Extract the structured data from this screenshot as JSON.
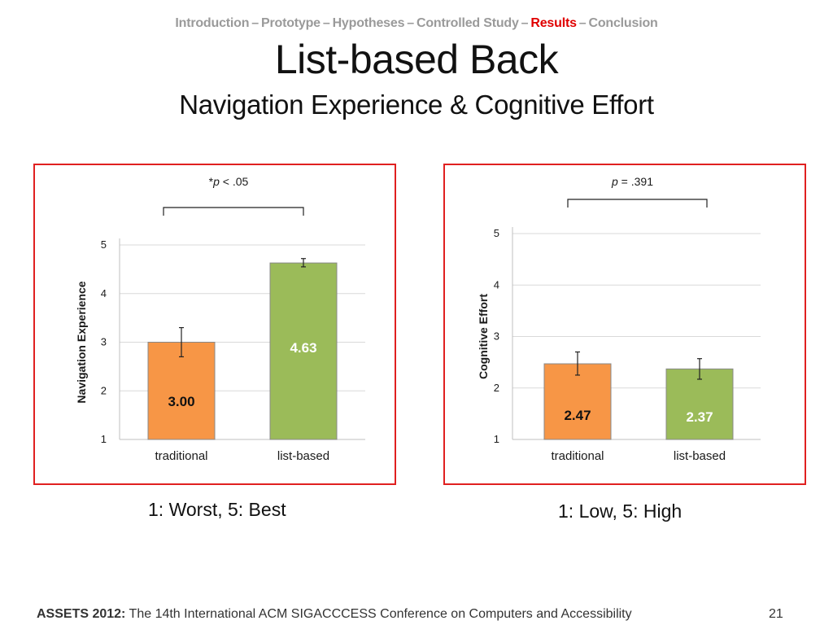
{
  "breadcrumb": {
    "items": [
      "Introduction",
      "Prototype",
      "Hypotheses",
      "Controlled Study",
      "Results",
      "Conclusion"
    ],
    "active_index": 4,
    "separator": "–",
    "active_color": "#e00000"
  },
  "title": "List-based Back",
  "subtitle": "Navigation Experience & Cognitive Effort",
  "colors": {
    "panel_border": "#e02020",
    "traditional_bar": "#f79646",
    "list_based_bar": "#9bbb59"
  },
  "chart_data": [
    {
      "type": "bar",
      "significance_label_prefix": "*",
      "significance_label_italic": "p",
      "significance_label_rest": " < .05",
      "ylabel": "Navigation Experience",
      "ylim": [
        1,
        5
      ],
      "yticks": [
        "1",
        "2",
        "3",
        "4",
        "5"
      ],
      "categories": [
        "traditional",
        "list-based"
      ],
      "values": [
        3.0,
        4.63
      ],
      "data_labels": [
        "3.00",
        "4.63"
      ],
      "error_low": [
        2.7,
        4.55
      ],
      "error_high": [
        3.3,
        4.72
      ],
      "grid": true
    },
    {
      "type": "bar",
      "significance_label_prefix": "",
      "significance_label_italic": "p",
      "significance_label_rest": " = .391",
      "ylabel": "Cognitive Effort",
      "ylim": [
        1,
        5
      ],
      "yticks": [
        "1",
        "2",
        "3",
        "4",
        "5"
      ],
      "categories": [
        "traditional",
        "list-based"
      ],
      "values": [
        2.47,
        2.37
      ],
      "data_labels": [
        "2.47",
        "2.37"
      ],
      "error_low": [
        2.25,
        2.17
      ],
      "error_high": [
        2.7,
        2.57
      ],
      "grid": true
    }
  ],
  "notes": [
    "1: Worst, 5: Best",
    "1: Low, 5: High"
  ],
  "footer": {
    "bold": "ASSETS 2012:",
    "text": " The 14th International ACM SIGACCCESS Conference on Computers and Accessibility"
  },
  "page_number": "21"
}
